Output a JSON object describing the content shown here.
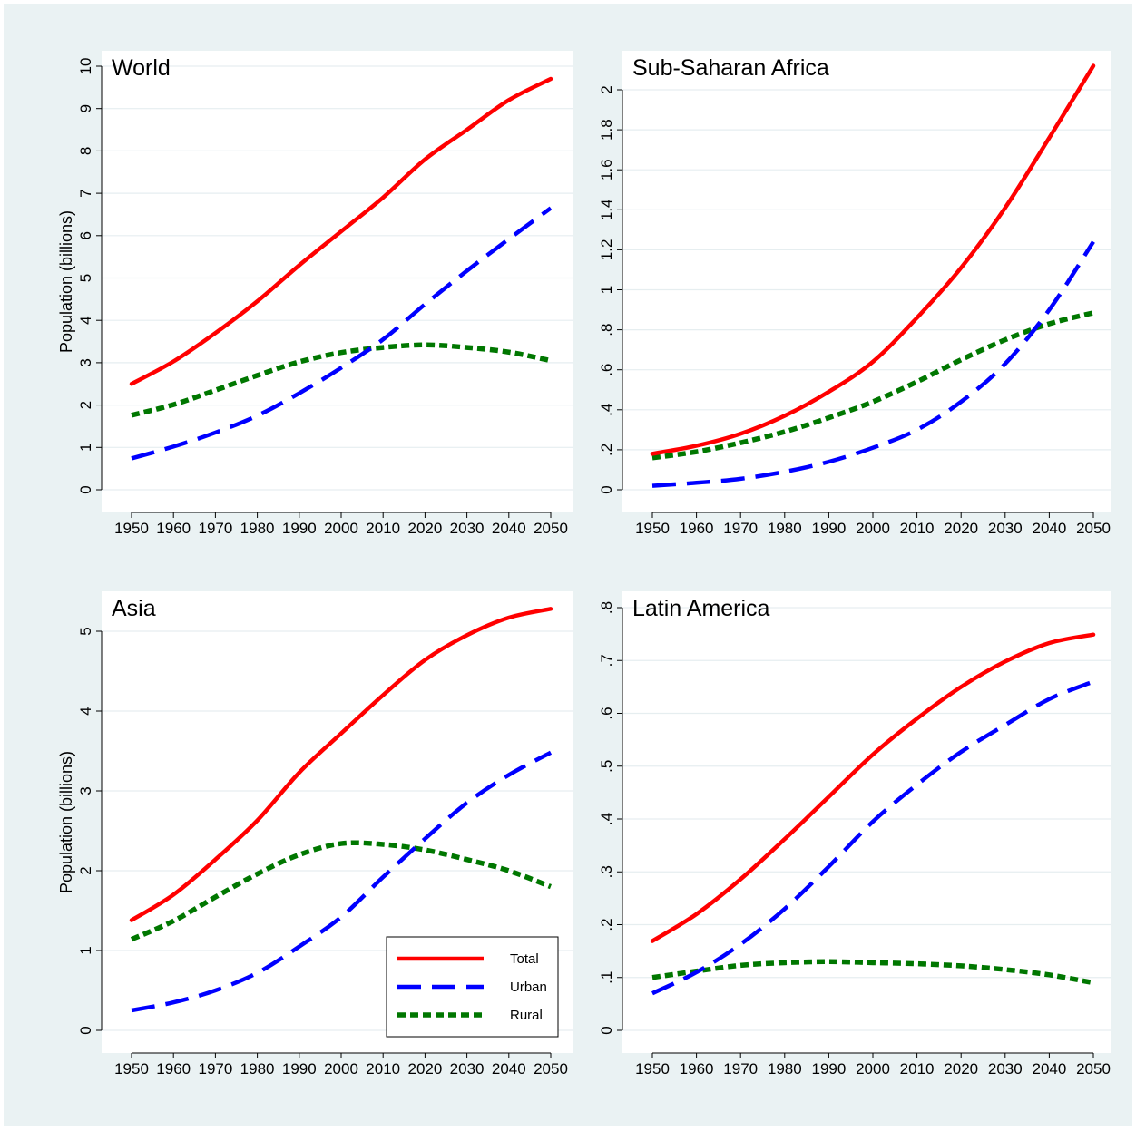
{
  "chart_data": [
    {
      "type": "line",
      "title": "World",
      "ylabel": "Population (billions)",
      "xlim": [
        1950,
        2050
      ],
      "ylim": [
        0,
        10
      ],
      "xticks": [
        1950,
        1960,
        1970,
        1980,
        1990,
        2000,
        2010,
        2020,
        2030,
        2040,
        2050
      ],
      "xtick_labels": [
        "1950",
        "1960",
        "1970",
        "1980",
        "1990",
        "2000",
        "2010",
        "2020",
        "2030",
        "2040",
        "2050"
      ],
      "yticks": [
        0,
        1,
        2,
        3,
        4,
        5,
        6,
        7,
        8,
        9,
        10
      ],
      "ytick_labels": [
        "0",
        "1",
        "2",
        "3",
        "4",
        "5",
        "6",
        "7",
        "8",
        "9",
        "10"
      ],
      "grid": true,
      "x": [
        1950,
        1960,
        1970,
        1980,
        1990,
        2000,
        2010,
        2020,
        2030,
        2040,
        2050
      ],
      "series": [
        {
          "name": "Total",
          "color": "#ff0000",
          "style": "solid",
          "values": [
            2.5,
            3.03,
            3.7,
            4.45,
            5.3,
            6.1,
            6.9,
            7.8,
            8.5,
            9.2,
            9.7
          ]
        },
        {
          "name": "Urban",
          "color": "#0000ff",
          "style": "dashed",
          "values": [
            0.74,
            1.02,
            1.35,
            1.75,
            2.28,
            2.88,
            3.55,
            4.38,
            5.17,
            5.92,
            6.65
          ]
        },
        {
          "name": "Rural",
          "color": "#007700",
          "style": "dotted",
          "values": [
            1.76,
            2.01,
            2.35,
            2.7,
            3.02,
            3.24,
            3.36,
            3.42,
            3.36,
            3.25,
            3.05
          ]
        }
      ]
    },
    {
      "type": "line",
      "title": "Sub-Saharan Africa",
      "ylabel": "",
      "xlim": [
        1950,
        2050
      ],
      "ylim": [
        0,
        2.1
      ],
      "xticks": [
        1950,
        1960,
        1970,
        1980,
        1990,
        2000,
        2010,
        2020,
        2030,
        2040,
        2050
      ],
      "xtick_labels": [
        "1950",
        "1960",
        "1970",
        "1980",
        "1990",
        "2000",
        "2010",
        "2020",
        "2030",
        "2040",
        "2050"
      ],
      "yticks": [
        0,
        0.2,
        0.4,
        0.6,
        0.8,
        1,
        1.2,
        1.4,
        1.6,
        1.8,
        2
      ],
      "ytick_labels": [
        "0",
        ".2",
        ".4",
        ".6",
        ".8",
        "1",
        "1.2",
        "1.4",
        "1.6",
        "1.8",
        "2"
      ],
      "grid": true,
      "x": [
        1950,
        1960,
        1970,
        1980,
        1990,
        2000,
        2010,
        2020,
        2030,
        2040,
        2050
      ],
      "series": [
        {
          "name": "Total",
          "color": "#ff0000",
          "style": "solid",
          "values": [
            0.18,
            0.22,
            0.28,
            0.37,
            0.49,
            0.64,
            0.86,
            1.11,
            1.41,
            1.76,
            2.12
          ]
        },
        {
          "name": "Urban",
          "color": "#0000ff",
          "style": "dashed",
          "values": [
            0.02,
            0.035,
            0.055,
            0.09,
            0.14,
            0.21,
            0.3,
            0.44,
            0.63,
            0.9,
            1.24
          ]
        },
        {
          "name": "Rural",
          "color": "#007700",
          "style": "dotted",
          "values": [
            0.16,
            0.19,
            0.235,
            0.29,
            0.36,
            0.44,
            0.54,
            0.65,
            0.75,
            0.83,
            0.885
          ]
        }
      ]
    },
    {
      "type": "line",
      "title": "Asia",
      "ylabel": "Population (billions)",
      "xlim": [
        1950,
        2050
      ],
      "ylim": [
        0,
        5.5
      ],
      "xticks": [
        1950,
        1960,
        1970,
        1980,
        1990,
        2000,
        2010,
        2020,
        2030,
        2040,
        2050
      ],
      "xtick_labels": [
        "1950",
        "1960",
        "1970",
        "1980",
        "1990",
        "2000",
        "2010",
        "2020",
        "2030",
        "2040",
        "2050"
      ],
      "yticks": [
        0,
        1,
        2,
        3,
        4,
        5
      ],
      "ytick_labels": [
        "0",
        "1",
        "2",
        "3",
        "4",
        "5"
      ],
      "grid": true,
      "legend": {
        "position": "bottom-right",
        "entries": [
          "Total",
          "Urban",
          "Rural"
        ]
      },
      "x": [
        1950,
        1960,
        1970,
        1980,
        1990,
        2000,
        2010,
        2020,
        2030,
        2040,
        2050
      ],
      "series": [
        {
          "name": "Total",
          "color": "#ff0000",
          "style": "solid",
          "values": [
            1.38,
            1.7,
            2.14,
            2.63,
            3.23,
            3.72,
            4.2,
            4.64,
            4.95,
            5.17,
            5.28
          ]
        },
        {
          "name": "Urban",
          "color": "#0000ff",
          "style": "dashed",
          "values": [
            0.25,
            0.35,
            0.5,
            0.72,
            1.05,
            1.42,
            1.92,
            2.4,
            2.85,
            3.2,
            3.48
          ]
        },
        {
          "name": "Rural",
          "color": "#007700",
          "style": "dotted",
          "values": [
            1.14,
            1.37,
            1.67,
            1.96,
            2.2,
            2.34,
            2.33,
            2.26,
            2.14,
            2.0,
            1.8
          ]
        }
      ]
    },
    {
      "type": "line",
      "title": "Latin America",
      "ylabel": "",
      "xlim": [
        1950,
        2050
      ],
      "ylim": [
        0,
        0.82
      ],
      "xticks": [
        1950,
        1960,
        1970,
        1980,
        1990,
        2000,
        2010,
        2020,
        2030,
        2040,
        2050
      ],
      "xtick_labels": [
        "1950",
        "1960",
        "1970",
        "1980",
        "1990",
        "2000",
        "2010",
        "2020",
        "2030",
        "2040",
        "2050"
      ],
      "yticks": [
        0,
        0.1,
        0.2,
        0.3,
        0.4,
        0.5,
        0.6,
        0.7,
        0.8
      ],
      "ytick_labels": [
        "0",
        ".1",
        ".2",
        ".3",
        ".4",
        ".5",
        ".6",
        ".7",
        ".8"
      ],
      "grid": true,
      "x": [
        1950,
        1960,
        1970,
        1980,
        1990,
        2000,
        2010,
        2020,
        2030,
        2040,
        2050
      ],
      "series": [
        {
          "name": "Total",
          "color": "#ff0000",
          "style": "solid",
          "values": [
            0.169,
            0.22,
            0.286,
            0.362,
            0.442,
            0.522,
            0.59,
            0.65,
            0.698,
            0.733,
            0.749
          ]
        },
        {
          "name": "Urban",
          "color": "#0000ff",
          "style": "dashed",
          "values": [
            0.07,
            0.11,
            0.163,
            0.23,
            0.31,
            0.395,
            0.465,
            0.527,
            0.578,
            0.627,
            0.66
          ]
        },
        {
          "name": "Rural",
          "color": "#007700",
          "style": "dotted",
          "values": [
            0.1,
            0.112,
            0.123,
            0.128,
            0.13,
            0.128,
            0.126,
            0.122,
            0.115,
            0.105,
            0.09
          ]
        }
      ]
    }
  ]
}
